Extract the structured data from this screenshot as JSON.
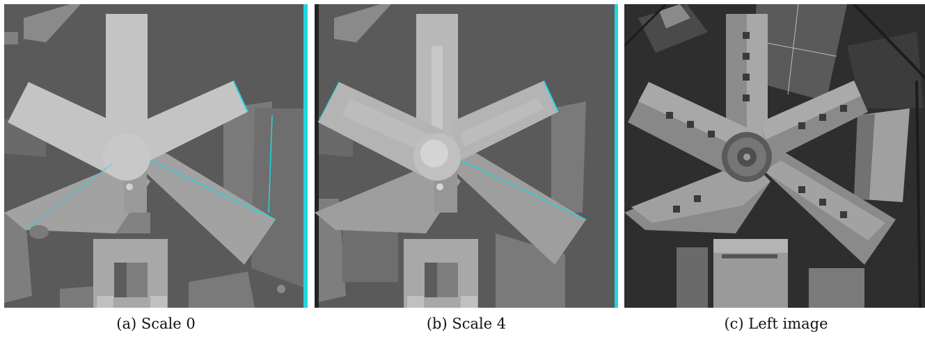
{
  "figure": {
    "panels": [
      {
        "caption": "(a) Scale 0"
      },
      {
        "caption": "(b) Scale 4"
      },
      {
        "caption": "(c) Left image"
      }
    ],
    "colors": {
      "background_depth": "#5c5c5c",
      "building_high": "#c6c6c6",
      "building_mid": "#9a9a9a",
      "building_low": "#7d7d7d",
      "edge_artifact": "#22d6e0",
      "aerial_ground": "#303030",
      "aerial_roof": "#8e8e8e",
      "aerial_roof_light": "#b3b3b3"
    }
  }
}
